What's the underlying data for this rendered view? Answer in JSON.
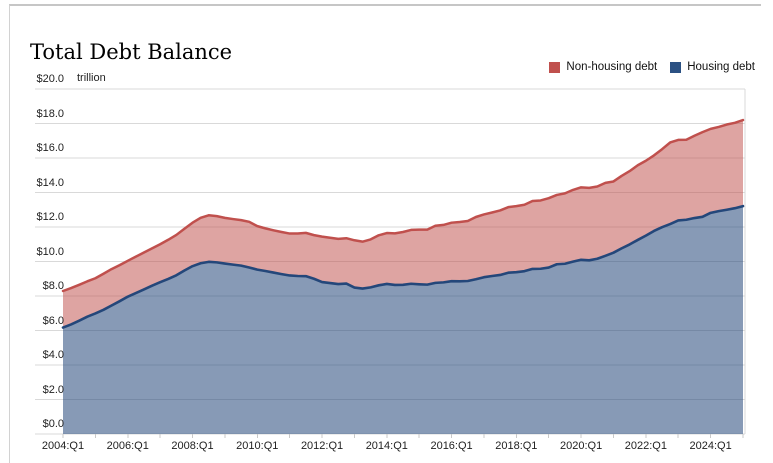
{
  "chart_data": {
    "type": "area",
    "stacked": true,
    "title": "Total Debt Balance",
    "unit": "trillion",
    "frequency": "quarterly",
    "x_start": "2004:Q1",
    "x_end": "2025:Q1",
    "ylim": [
      0,
      20
    ],
    "grid": true,
    "legend_position": "top-right",
    "legend": [
      {
        "label": "Non-housing debt",
        "color": "#c0504d"
      },
      {
        "label": "Housing debt",
        "color": "#2b5183"
      }
    ],
    "y_ticks": [
      {
        "label": "$20.0",
        "value": 20.0
      },
      {
        "label": "$18.0",
        "value": 18.0
      },
      {
        "label": "$16.0",
        "value": 16.0
      },
      {
        "label": "$14.0",
        "value": 14.0
      },
      {
        "label": "$12.0",
        "value": 12.0
      },
      {
        "label": "$10.0",
        "value": 10.0
      },
      {
        "label": "$8.0",
        "value": 8.0
      },
      {
        "label": "$6.0",
        "value": 6.0
      },
      {
        "label": "$4.0",
        "value": 4.0
      },
      {
        "label": "$2.0",
        "value": 2.0
      },
      {
        "label": "$0.0",
        "value": 0.0
      }
    ],
    "x_ticks": [
      {
        "label": "2004:Q1",
        "index": 0
      },
      {
        "label": "2006:Q1",
        "index": 8
      },
      {
        "label": "2008:Q1",
        "index": 16
      },
      {
        "label": "2010:Q1",
        "index": 24
      },
      {
        "label": "2012:Q1",
        "index": 32
      },
      {
        "label": "2014:Q1",
        "index": 40
      },
      {
        "label": "2016:Q1",
        "index": 48
      },
      {
        "label": "2018:Q1",
        "index": 56
      },
      {
        "label": "2020:Q1",
        "index": 64
      },
      {
        "label": "2022:Q1",
        "index": 72
      },
      {
        "label": "2024:Q1",
        "index": 80
      }
    ],
    "series": [
      {
        "name": "Housing debt",
        "line_color": "#24477a",
        "fill_color": "rgba(36,71,122,0.55)",
        "values": [
          6.17,
          6.35,
          6.57,
          6.8,
          6.99,
          7.2,
          7.45,
          7.7,
          7.96,
          8.17,
          8.38,
          8.6,
          8.8,
          8.99,
          9.2,
          9.48,
          9.73,
          9.9,
          9.98,
          9.95,
          9.88,
          9.82,
          9.76,
          9.65,
          9.53,
          9.45,
          9.36,
          9.27,
          9.19,
          9.16,
          9.15,
          9.0,
          8.81,
          8.75,
          8.69,
          8.72,
          8.49,
          8.43,
          8.5,
          8.62,
          8.7,
          8.64,
          8.65,
          8.71,
          8.68,
          8.66,
          8.76,
          8.79,
          8.86,
          8.85,
          8.87,
          8.97,
          9.09,
          9.16,
          9.22,
          9.35,
          9.38,
          9.44,
          9.57,
          9.58,
          9.65,
          9.84,
          9.87,
          9.99,
          10.1,
          10.07,
          10.16,
          10.33,
          10.51,
          10.76,
          10.99,
          11.25,
          11.5,
          11.77,
          11.99,
          12.17,
          12.38,
          12.42,
          12.52,
          12.59,
          12.82,
          12.92,
          13.0,
          13.09,
          13.21
        ]
      },
      {
        "name": "Non-housing debt",
        "line_color": "#c0504d",
        "fill_color": "rgba(192,80,77,0.52)",
        "values": [
          2.12,
          2.11,
          2.08,
          2.05,
          2.04,
          2.09,
          2.11,
          2.09,
          2.08,
          2.11,
          2.14,
          2.16,
          2.2,
          2.27,
          2.34,
          2.42,
          2.52,
          2.63,
          2.7,
          2.68,
          2.65,
          2.64,
          2.64,
          2.65,
          2.52,
          2.47,
          2.45,
          2.44,
          2.43,
          2.46,
          2.51,
          2.53,
          2.63,
          2.63,
          2.62,
          2.63,
          2.74,
          2.72,
          2.78,
          2.9,
          2.95,
          2.99,
          3.06,
          3.12,
          3.17,
          3.19,
          3.31,
          3.33,
          3.39,
          3.44,
          3.48,
          3.61,
          3.64,
          3.68,
          3.74,
          3.8,
          3.83,
          3.85,
          3.94,
          3.96,
          4.02,
          4.02,
          4.08,
          4.16,
          4.2,
          4.2,
          4.19,
          4.23,
          4.13,
          4.2,
          4.25,
          4.33,
          4.34,
          4.38,
          4.52,
          4.73,
          4.67,
          4.64,
          4.77,
          4.91,
          4.87,
          4.88,
          4.94,
          4.95,
          4.99
        ]
      }
    ],
    "grid_color": "#d9d9d9",
    "axis_tick_color": "#c9c9c9"
  }
}
